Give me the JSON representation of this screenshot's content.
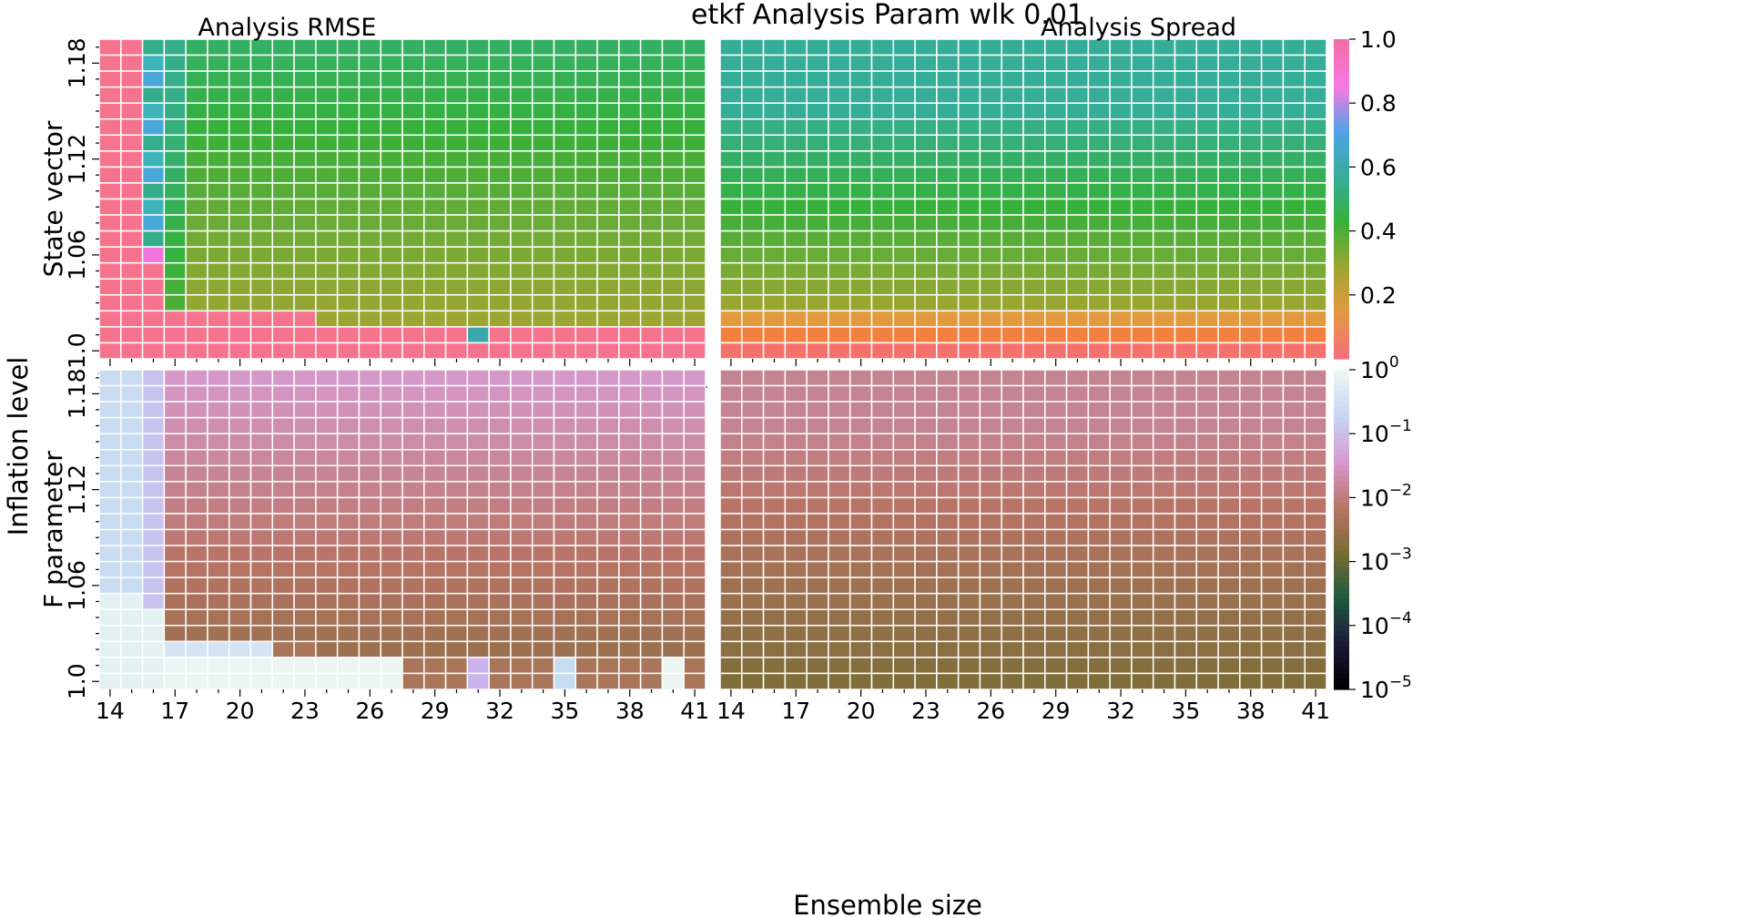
{
  "figure": {
    "title": "etkf Analysis Param wlk 0.01",
    "xlabel": "Ensemble size",
    "ylabel": "Inflation level"
  },
  "chart_data": [
    {
      "type": "heatmap",
      "id": "state-rmse",
      "title": "Analysis RMSE",
      "row_label": "State vector",
      "x_range": [
        14,
        41
      ],
      "y_range": [
        1.0,
        1.2
      ],
      "x_ticks": [
        "14",
        "17",
        "20",
        "23",
        "26",
        "29",
        "32",
        "35",
        "38",
        "41"
      ],
      "y_ticks": [
        "1.0",
        "1.06",
        "1.12",
        "1.18"
      ],
      "value_range": [
        0.0,
        1.0
      ],
      "scale": "linear"
    },
    {
      "type": "heatmap",
      "id": "state-spread",
      "title": "Analysis Spread",
      "x_range": [
        14,
        41
      ],
      "y_range": [
        1.0,
        1.2
      ],
      "value_range": [
        0.0,
        1.0
      ],
      "scale": "linear"
    },
    {
      "type": "heatmap",
      "id": "param-rmse",
      "title": "",
      "row_label": "F parameter",
      "x_range": [
        14,
        41
      ],
      "y_range": [
        1.0,
        1.2
      ],
      "x_ticks": [
        "14",
        "17",
        "20",
        "23",
        "26",
        "29",
        "32",
        "35",
        "38",
        "41"
      ],
      "y_ticks": [
        "1.0",
        "1.06",
        "1.12",
        "1.18"
      ],
      "value_range": [
        1e-05,
        1.0
      ],
      "scale": "log"
    },
    {
      "type": "heatmap",
      "id": "param-spread",
      "title": "",
      "x_range": [
        14,
        41
      ],
      "y_range": [
        1.0,
        1.2
      ],
      "x_ticks": [
        "14",
        "17",
        "20",
        "23",
        "26",
        "29",
        "32",
        "35",
        "38",
        "41"
      ],
      "value_range": [
        1e-05,
        1.0
      ],
      "scale": "log"
    }
  ],
  "colorbars": {
    "linear": {
      "ticks": [
        "1.0",
        "0.8",
        "0.6",
        "0.4",
        "0.2"
      ],
      "stops": [
        "#f16ea9",
        "#f77ae0",
        "#4fa3e8",
        "#36ad9a",
        "#35b13b",
        "#9ba631",
        "#e39a3e",
        "#f6707c"
      ]
    },
    "log": {
      "ticks": [
        "0",
        "−1",
        "−2",
        "−3",
        "−4",
        "−5"
      ],
      "tick_base": "10",
      "stops": [
        "#ebf6f3",
        "#c6d4f3",
        "#d79acd",
        "#b87467",
        "#7a6d35",
        "#215a3e",
        "#1c1b3a",
        "#000000"
      ]
    }
  }
}
